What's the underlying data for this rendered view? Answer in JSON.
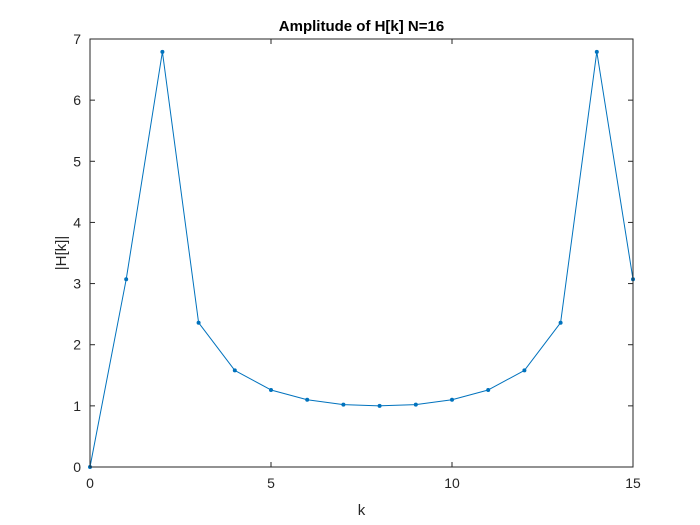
{
  "chart_data": {
    "type": "line",
    "title": "Amplitude of H[k] N=16",
    "xlabel": "k",
    "ylabel": "|H[k]|",
    "x": [
      0,
      1,
      2,
      3,
      4,
      5,
      6,
      7,
      8,
      9,
      10,
      11,
      12,
      13,
      14,
      15
    ],
    "series": [
      {
        "values": [
          0,
          3.07,
          6.79,
          2.36,
          1.58,
          1.26,
          1.1,
          1.02,
          1.0,
          1.02,
          1.1,
          1.26,
          1.58,
          2.36,
          6.79,
          3.07
        ],
        "color": "#0072BD",
        "marker": "point"
      }
    ],
    "xlim": [
      0,
      15
    ],
    "ylim": [
      0,
      7
    ],
    "xticks": [
      0,
      5,
      10,
      15
    ],
    "yticks": [
      0,
      1,
      2,
      3,
      4,
      5,
      6,
      7
    ],
    "grid": false,
    "legend": "none"
  }
}
